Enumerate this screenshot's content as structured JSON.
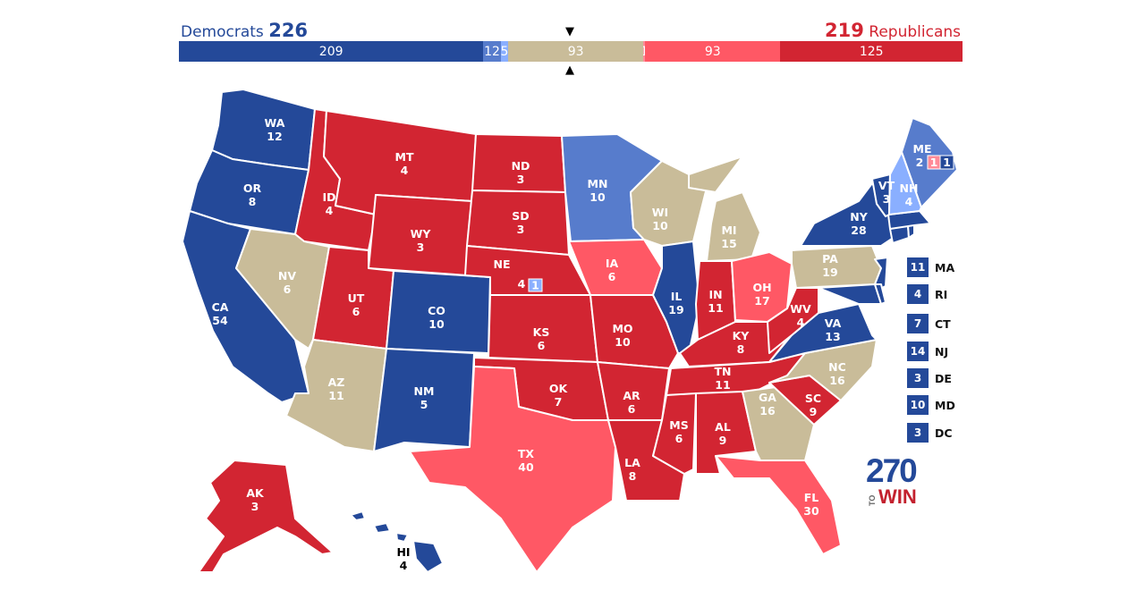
{
  "header": {
    "dem_name": "Democrats",
    "dem_total": "226",
    "rep_total": "219",
    "rep_name": "Republicans",
    "segments": [
      {
        "label": "209",
        "value": 209,
        "color": "#244999"
      },
      {
        "label": "12",
        "value": 12,
        "color": "#577ccc"
      },
      {
        "label": "5",
        "value": 5,
        "color": "#8aafff"
      },
      {
        "label": "93",
        "value": 93,
        "color": "#c9bc99"
      },
      {
        "label": "1",
        "value": 1,
        "color": "#ff8b98"
      },
      {
        "label": "93",
        "value": 93,
        "color": "#ff5865"
      },
      {
        "label": "125",
        "value": 125,
        "color": "#d22532"
      }
    ],
    "marker_down": "▼",
    "marker_up": "▲"
  },
  "colors": {
    "safe_dem": "#244999",
    "likely_dem": "#577ccc",
    "lean_dem": "#8aafff",
    "tossup": "#c9bc99",
    "lean_rep": "#ff8b98",
    "likely_rep": "#ff5865",
    "safe_rep": "#d22532"
  },
  "states": {
    "WA": {
      "abbr": "WA",
      "ev": "12"
    },
    "OR": {
      "abbr": "OR",
      "ev": "8"
    },
    "CA": {
      "abbr": "CA",
      "ev": "54"
    },
    "ID": {
      "abbr": "ID",
      "ev": "4"
    },
    "NV": {
      "abbr": "NV",
      "ev": "6"
    },
    "MT": {
      "abbr": "MT",
      "ev": "4"
    },
    "WY": {
      "abbr": "WY",
      "ev": "3"
    },
    "UT": {
      "abbr": "UT",
      "ev": "6"
    },
    "AZ": {
      "abbr": "AZ",
      "ev": "11"
    },
    "CO": {
      "abbr": "CO",
      "ev": "10"
    },
    "NM": {
      "abbr": "NM",
      "ev": "5"
    },
    "ND": {
      "abbr": "ND",
      "ev": "3"
    },
    "SD": {
      "abbr": "SD",
      "ev": "3"
    },
    "NE": {
      "abbr": "NE",
      "ev": "4",
      "district": "1"
    },
    "KS": {
      "abbr": "KS",
      "ev": "6"
    },
    "OK": {
      "abbr": "OK",
      "ev": "7"
    },
    "TX": {
      "abbr": "TX",
      "ev": "40"
    },
    "MN": {
      "abbr": "MN",
      "ev": "10"
    },
    "IA": {
      "abbr": "IA",
      "ev": "6"
    },
    "MO": {
      "abbr": "MO",
      "ev": "10"
    },
    "AR": {
      "abbr": "AR",
      "ev": "6"
    },
    "LA": {
      "abbr": "LA",
      "ev": "8"
    },
    "WI": {
      "abbr": "WI",
      "ev": "10"
    },
    "IL": {
      "abbr": "IL",
      "ev": "19"
    },
    "MI": {
      "abbr": "MI",
      "ev": "15"
    },
    "IN": {
      "abbr": "IN",
      "ev": "11"
    },
    "OH": {
      "abbr": "OH",
      "ev": "17"
    },
    "KY": {
      "abbr": "KY",
      "ev": "8"
    },
    "TN": {
      "abbr": "TN",
      "ev": "11"
    },
    "MS": {
      "abbr": "MS",
      "ev": "6"
    },
    "AL": {
      "abbr": "AL",
      "ev": "9"
    },
    "GA": {
      "abbr": "GA",
      "ev": "16"
    },
    "FL": {
      "abbr": "FL",
      "ev": "30"
    },
    "SC": {
      "abbr": "SC",
      "ev": "9"
    },
    "NC": {
      "abbr": "NC",
      "ev": "16"
    },
    "VA": {
      "abbr": "VA",
      "ev": "13"
    },
    "WV": {
      "abbr": "WV",
      "ev": "4"
    },
    "PA": {
      "abbr": "PA",
      "ev": "19"
    },
    "NY": {
      "abbr": "NY",
      "ev": "28"
    },
    "VT": {
      "abbr": "VT",
      "ev": "3"
    },
    "NH": {
      "abbr": "NH",
      "ev": "4"
    },
    "ME": {
      "abbr": "ME",
      "ev": "2",
      "d1": "1",
      "d2": "1"
    },
    "AK": {
      "abbr": "AK",
      "ev": "3"
    },
    "HI": {
      "abbr": "HI",
      "ev": "4"
    }
  },
  "legend": [
    {
      "ev": "11",
      "name": "MA"
    },
    {
      "ev": "4",
      "name": "RI"
    },
    {
      "ev": "7",
      "name": "CT"
    },
    {
      "ev": "14",
      "name": "NJ"
    },
    {
      "ev": "3",
      "name": "DE"
    },
    {
      "ev": "10",
      "name": "MD"
    },
    {
      "ev": "3",
      "name": "DC"
    }
  ],
  "logo": {
    "number": "270",
    "to": "TO",
    "win": "WIN"
  }
}
